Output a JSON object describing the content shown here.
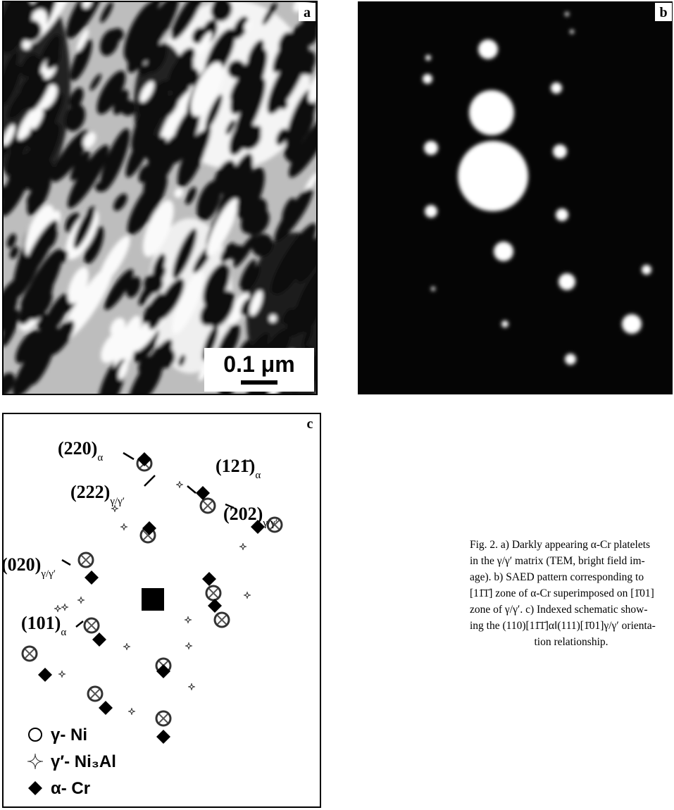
{
  "panels": {
    "a": {
      "letter": "a",
      "scale_bar": "0.1 μm"
    },
    "b": {
      "letter": "b"
    },
    "c": {
      "letter": "c",
      "labels": [
        {
          "main": "(220)",
          "sub": "α"
        },
        {
          "main": "(121̄)",
          "sub": "α"
        },
        {
          "main": "(222)",
          "sub": "γ/γ′"
        },
        {
          "main": "(202)",
          "sub": "γ/γ′"
        },
        {
          "main": "(020)",
          "sub": "γ/γ′"
        },
        {
          "main": "(101)",
          "sub": "α"
        }
      ],
      "legend": [
        "γ- Ni",
        "γ′- Ni₃Al",
        "α- Cr"
      ]
    }
  },
  "caption": {
    "lines": [
      "Fig. 2. a) Darkly appearing α-Cr platelets",
      "in the γ/γ′ matrix (TEM, bright field im-",
      "age). b) SAED pattern corresponding to",
      "[11̄1̄] zone of α-Cr superimposed on [1̄01]",
      "zone of γ/γ′. c) Indexed schematic show-",
      "ing the (110)[11̄1̄]α‖(111)[1̄01]γ/γ′ orienta-",
      "tion relationship."
    ]
  }
}
